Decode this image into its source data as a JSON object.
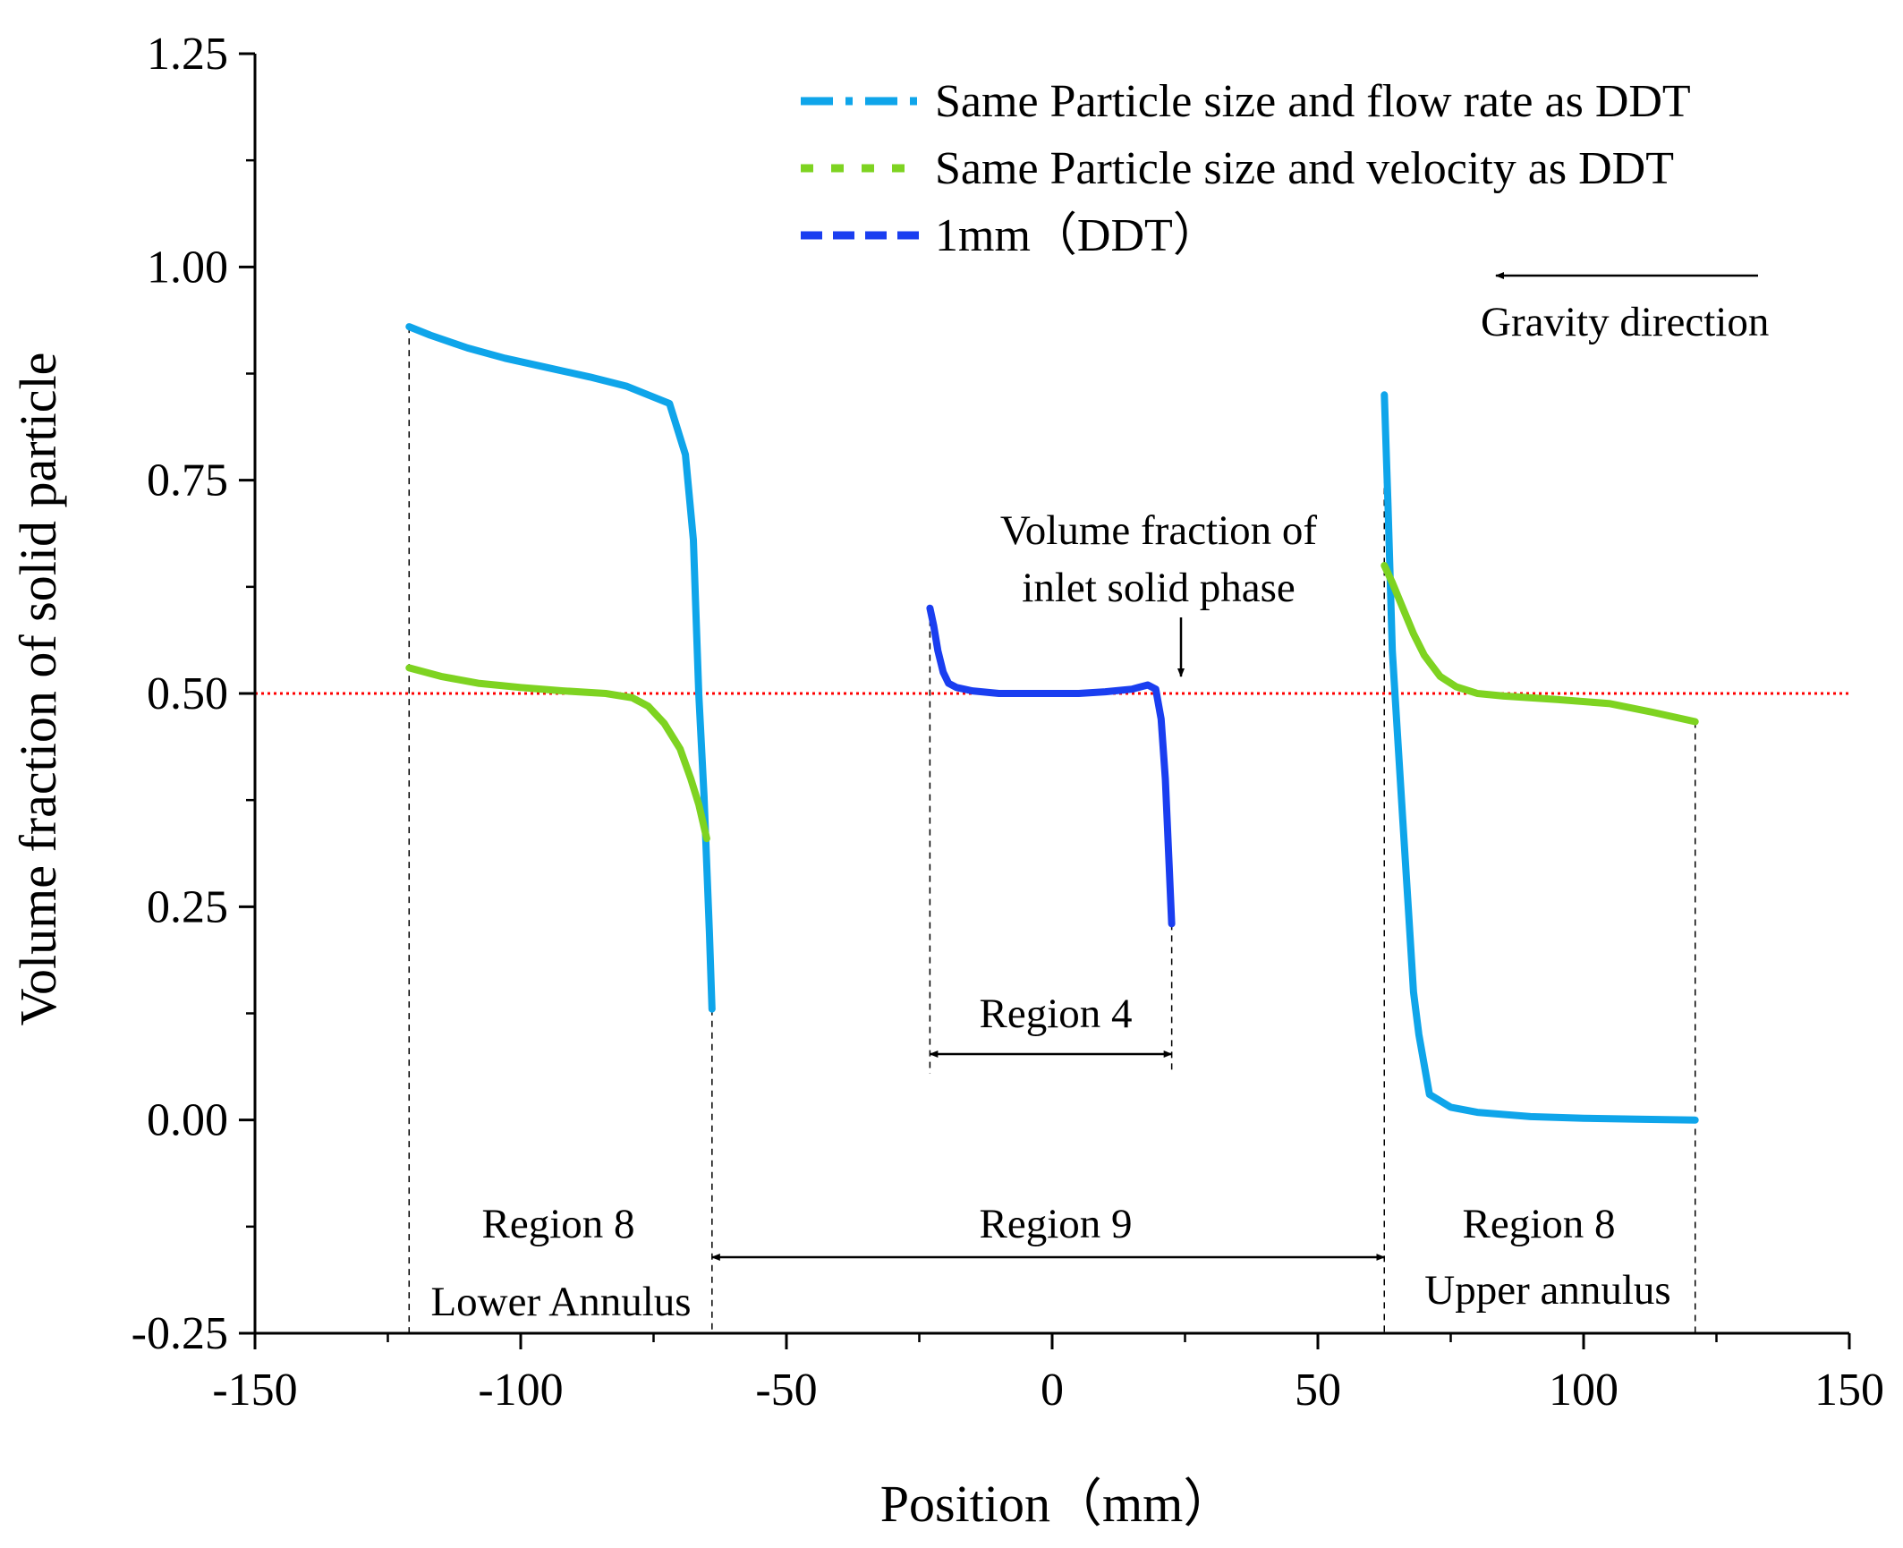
{
  "chart_data": {
    "type": "line",
    "xlabel": "Position（mm）",
    "ylabel": "Volume fraction of solid particle",
    "xlim": [
      -150,
      150
    ],
    "ylim": [
      -0.25,
      1.25
    ],
    "xticks": [
      -150,
      -100,
      -50,
      0,
      50,
      100,
      150
    ],
    "xtick_labels": [
      "-150",
      "-100",
      "-50",
      "0",
      "50",
      "100",
      "150"
    ],
    "yticks": [
      -0.25,
      0,
      0.25,
      0.5,
      0.75,
      1.0,
      1.25
    ],
    "ytick_labels": [
      "-0.25",
      "0.00",
      "0.25",
      "0.50",
      "0.75",
      "1.00",
      "1.25"
    ],
    "reference_line": {
      "y": 0.5,
      "color": "#ff0000",
      "style": "dotted"
    },
    "series": [
      {
        "name": "Same Particle size and flow rate as DDT",
        "color": "#0fa5ea",
        "style": "dash-dot",
        "segments": [
          {
            "x": [
              -121,
              -117,
              -110,
              -103,
              -95,
              -87,
              -80,
              -72,
              -69,
              -67.5,
              -66.5,
              -65.5,
              -64.5,
              -64
            ],
            "y": [
              0.93,
              0.92,
              0.905,
              0.893,
              0.882,
              0.871,
              0.86,
              0.84,
              0.78,
              0.68,
              0.5,
              0.38,
              0.22,
              0.13
            ]
          },
          {
            "x": [
              62.5,
              63.2,
              64,
              65,
              66,
              67,
              68,
              69,
              71,
              75,
              80,
              90,
              100,
              110,
              121
            ],
            "y": [
              0.85,
              0.72,
              0.55,
              0.45,
              0.35,
              0.25,
              0.15,
              0.1,
              0.03,
              0.015,
              0.009,
              0.004,
              0.002,
              0.001,
              0.0
            ]
          }
        ]
      },
      {
        "name": "Same Particle size and velocity as DDT",
        "color": "#7ed321",
        "style": "dashed",
        "segments": [
          {
            "x": [
              -121,
              -115,
              -108,
              -100,
              -92,
              -84,
              -79,
              -76,
              -73,
              -70,
              -68,
              -66.5,
              -65
            ],
            "y": [
              0.53,
              0.52,
              0.512,
              0.507,
              0.503,
              0.5,
              0.495,
              0.485,
              0.465,
              0.435,
              0.4,
              0.37,
              0.33
            ]
          },
          {
            "x": [
              62.5,
              64,
              66,
              68,
              70,
              73,
              76,
              80,
              85,
              95,
              105,
              113,
              121
            ],
            "y": [
              0.65,
              0.63,
              0.6,
              0.57,
              0.545,
              0.52,
              0.508,
              0.5,
              0.497,
              0.493,
              0.488,
              0.478,
              0.467
            ]
          }
        ]
      },
      {
        "name": "1mm（DDT）",
        "color": "#1a3ef0",
        "style": "dashed",
        "segments": [
          {
            "x": [
              -23,
              -22.3,
              -21.5,
              -20.5,
              -19.5,
              -18,
              -15,
              -10,
              -5,
              0,
              5,
              10,
              15,
              18,
              19.5,
              20.5,
              21.3,
              22,
              22.5
            ],
            "y": [
              0.6,
              0.58,
              0.55,
              0.525,
              0.512,
              0.507,
              0.503,
              0.5,
              0.5,
              0.5,
              0.5,
              0.502,
              0.505,
              0.51,
              0.505,
              0.47,
              0.4,
              0.3,
              0.23
            ]
          }
        ]
      }
    ],
    "annotations": {
      "gravity": "Gravity direction",
      "inlet_line1": "Volume fraction of",
      "inlet_line2": "inlet solid phase",
      "region4": "Region 4",
      "region9": "Region 9",
      "region8_lower": "Region 8",
      "lower_annulus": "Lower Annulus",
      "region8_upper": "Region 8",
      "upper_annulus": "Upper annulus"
    },
    "boundaries": {
      "dashed_x": [
        -121,
        -64,
        62.5,
        121,
        -23,
        22.5
      ]
    }
  }
}
